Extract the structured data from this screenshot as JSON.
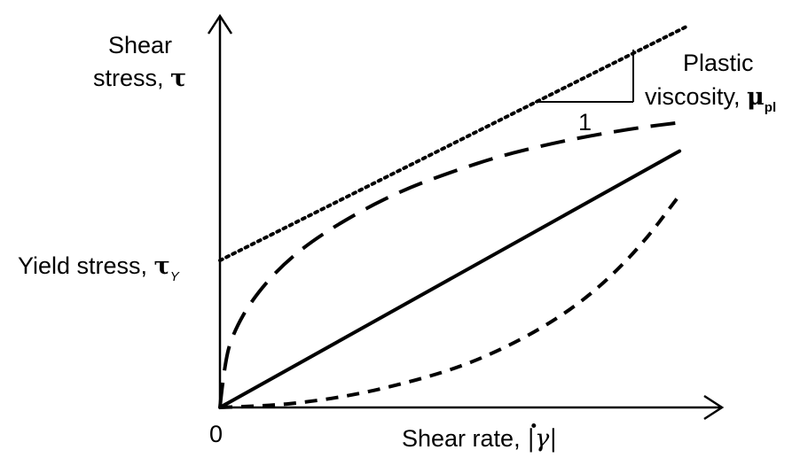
{
  "chart_data": {
    "type": "line",
    "xlabel_text": "Shear rate, ",
    "xlabel_symbol": "|γ|",
    "ylabel_line1": "Shear",
    "ylabel_line2_text": "stress, ",
    "ylabel_symbol": "τ",
    "origin_label": "0",
    "xlim": [
      0,
      1
    ],
    "ylim": [
      0,
      1
    ],
    "grid": false,
    "series": [
      {
        "style": "dotted",
        "x": [
          0,
          1
        ],
        "y": [
          0.386,
          1.0
        ]
      },
      {
        "style": "long-dash",
        "x": [
          0,
          0.01,
          0.03,
          0.07,
          0.13,
          0.2,
          0.3,
          0.4,
          0.5,
          0.6,
          0.7,
          0.8,
          0.9,
          1.0
        ],
        "y": [
          0,
          0.12,
          0.2,
          0.285,
          0.37,
          0.44,
          0.515,
          0.575,
          0.62,
          0.66,
          0.69,
          0.715,
          0.735,
          0.75
        ]
      },
      {
        "style": "solid",
        "x": [
          0,
          0.985
        ],
        "y": [
          0,
          0.673
        ]
      },
      {
        "style": "short-dash",
        "x": [
          0,
          0.1,
          0.2,
          0.3,
          0.4,
          0.5,
          0.6,
          0.7,
          0.8,
          0.9,
          0.985
        ],
        "y": [
          0,
          0.004,
          0.016,
          0.036,
          0.065,
          0.1,
          0.15,
          0.215,
          0.3,
          0.42,
          0.557
        ]
      }
    ],
    "annotations": {
      "yield_text": "Yield stress, ",
      "yield_symbol": "τ",
      "yield_sub": "Y",
      "plastic_line1": "Plastic",
      "plastic_line2_text": "viscosity, ",
      "plastic_symbol": "μ",
      "plastic_sub": "pl",
      "slope_run_label": "1"
    }
  }
}
